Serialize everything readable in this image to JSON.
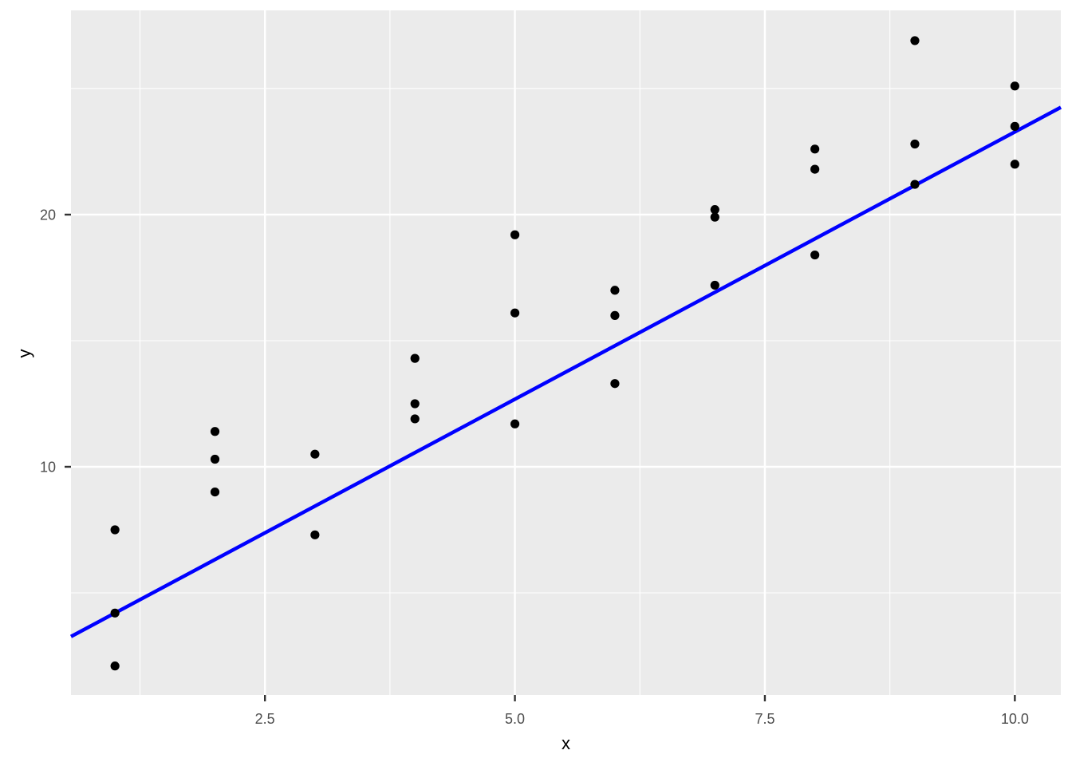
{
  "figure": {
    "background": "#FFFFFF"
  },
  "chart_data": {
    "type": "scatter",
    "title": "",
    "xlabel": "x",
    "ylabel": "y",
    "xlim": [
      0.56,
      10.46
    ],
    "ylim": [
      0.95,
      28.1
    ],
    "grid": true,
    "legend": false,
    "style": "ggplot2-theme-gray",
    "panel_background": "#EBEBEB",
    "gridline_color": "#FFFFFF",
    "point_color": "#000000",
    "tick_label_color": "#4D4D4D",
    "tick_mark_color": "#333333",
    "axis_title_color": "#000000",
    "x_axis": {
      "major_ticks": [
        2.5,
        5.0,
        7.5,
        10.0
      ],
      "tick_labels": [
        "2.5",
        "5.0",
        "7.5",
        "10.0"
      ],
      "minor_ticks": [
        1.25,
        3.75,
        6.25,
        8.75
      ]
    },
    "y_axis": {
      "major_ticks": [
        10,
        20
      ],
      "tick_labels": [
        "10",
        "20"
      ],
      "minor_ticks": [
        5,
        15,
        25
      ]
    },
    "points": [
      [
        1,
        7.5
      ],
      [
        1,
        4.2
      ],
      [
        1,
        2.1
      ],
      [
        2,
        11.4
      ],
      [
        2,
        10.3
      ],
      [
        2,
        9.0
      ],
      [
        3,
        10.5
      ],
      [
        3,
        7.3
      ],
      [
        4,
        14.3
      ],
      [
        4,
        12.5
      ],
      [
        4,
        11.9
      ],
      [
        5,
        19.2
      ],
      [
        5,
        16.1
      ],
      [
        5,
        11.7
      ],
      [
        6,
        17.0
      ],
      [
        6,
        16.0
      ],
      [
        6,
        13.3
      ],
      [
        7,
        20.2
      ],
      [
        7,
        19.9
      ],
      [
        7,
        17.2
      ],
      [
        8,
        22.6
      ],
      [
        8,
        21.8
      ],
      [
        8,
        18.4
      ],
      [
        9,
        26.9
      ],
      [
        9,
        22.8
      ],
      [
        9,
        21.2
      ],
      [
        10,
        25.1
      ],
      [
        10,
        23.5
      ],
      [
        10,
        22.0
      ]
    ],
    "trend_line": {
      "type": "linear",
      "slope": 2.12,
      "intercept": 2.08,
      "color": "#0000FF",
      "span": "full-panel-width"
    }
  }
}
